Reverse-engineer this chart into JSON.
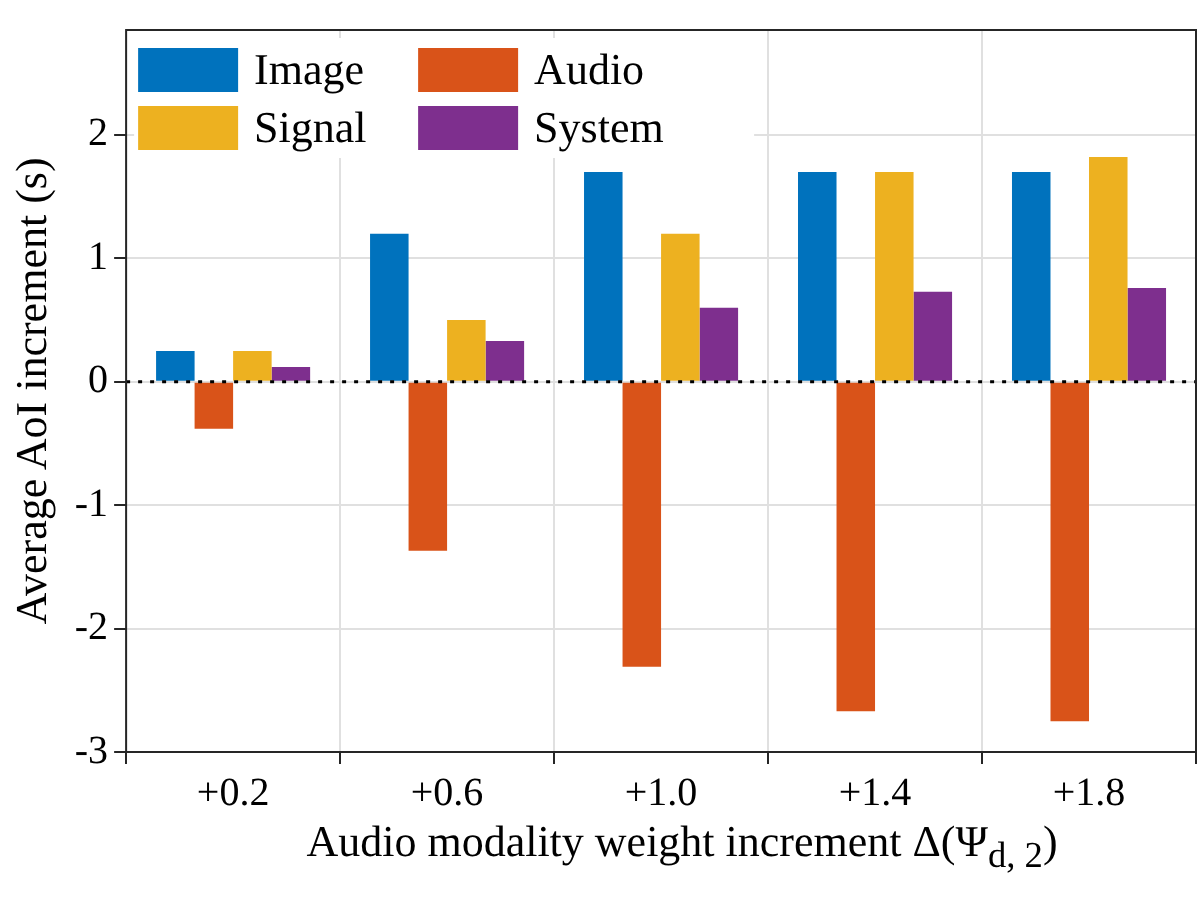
{
  "chart_data": {
    "type": "bar",
    "ylabel": "Average AoI increment (s)",
    "xlabel": "Audio modality weight increment Δ(Ψ$_{d, 2}$)",
    "categories": [
      "+0.2",
      "+0.6",
      "+1.0",
      "+1.4",
      "+1.8"
    ],
    "series": [
      {
        "name": "Image",
        "color": "#0072bd",
        "values": [
          0.25,
          1.2,
          1.7,
          1.7,
          1.7
        ]
      },
      {
        "name": "Audio",
        "color": "#d95319",
        "values": [
          -0.38,
          -1.37,
          -2.31,
          -2.67,
          -2.75
        ]
      },
      {
        "name": "Signal",
        "color": "#edb120",
        "values": [
          0.25,
          0.5,
          1.2,
          1.7,
          1.82
        ]
      },
      {
        "name": "System",
        "color": "#7e2f8e",
        "values": [
          0.12,
          0.33,
          0.6,
          0.73,
          0.76
        ]
      }
    ],
    "ylim": [
      -3,
      2.85
    ],
    "yticks": [
      -3,
      -2,
      -1,
      0,
      1,
      2
    ],
    "ref_lines": [
      {
        "axis": "y",
        "value": 0,
        "color": "#000000",
        "line_style": "dotted"
      }
    ],
    "grid": true,
    "legend": "top left"
  }
}
